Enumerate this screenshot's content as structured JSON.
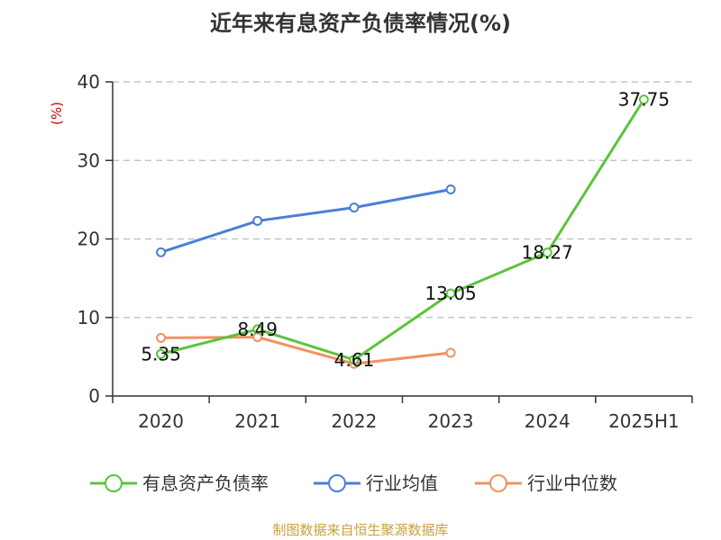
{
  "colors": {
    "debt_ratio": "#5ac43c",
    "industry_avg": "#4a7fd8",
    "industry_median": "#f39160",
    "axis": "#333333",
    "grid": "#bbbbbb",
    "unit": "#cc0000",
    "source": "#c8a040"
  },
  "chart_data": {
    "type": "line",
    "title": "近年来有息资产负债率情况(%)",
    "ylabel": "(%)",
    "xlabel": "",
    "ylim": [
      0,
      40
    ],
    "yticks": [
      0,
      10,
      20,
      30,
      40
    ],
    "grid": true,
    "legend_position": "bottom",
    "categories": [
      "2020",
      "2021",
      "2022",
      "2023",
      "2024",
      "2025H1"
    ],
    "series": [
      {
        "name": "有息资产负债率",
        "values": [
          5.35,
          8.49,
          4.61,
          13.05,
          18.27,
          37.75
        ],
        "labels": [
          "5.35",
          "8.49",
          "4.61",
          "13.05",
          "18.27",
          "37.75"
        ],
        "color_key": "debt_ratio"
      },
      {
        "name": "行业均值",
        "values": [
          18.3,
          22.3,
          24.0,
          26.3,
          null,
          null
        ],
        "color_key": "industry_avg"
      },
      {
        "name": "行业中位数",
        "values": [
          7.4,
          7.5,
          4.1,
          5.5,
          null,
          null
        ],
        "color_key": "industry_median"
      }
    ]
  },
  "footer": {
    "source": "制图数据来自恒生聚源数据库"
  }
}
